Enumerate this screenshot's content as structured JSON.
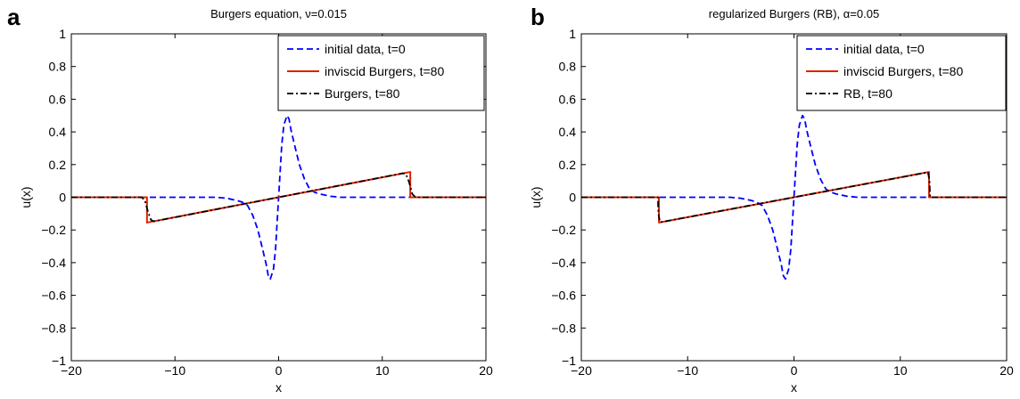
{
  "chart_data": [
    {
      "panel_label": "a",
      "type": "line",
      "title": "Burgers equation, ν=0.015",
      "xlabel": "x",
      "ylabel": "u(x)",
      "xlim": [
        -20,
        20
      ],
      "ylim": [
        -1,
        1
      ],
      "xticks": [
        -20,
        -10,
        0,
        10,
        20
      ],
      "yticks": [
        -1,
        -0.8,
        -0.6,
        -0.4,
        -0.2,
        0,
        0.2,
        0.4,
        0.6,
        0.8,
        1
      ],
      "xtick_labels": [
        "−20",
        "−10",
        "0",
        "10",
        "20"
      ],
      "ytick_labels": [
        "−1",
        "−0.8",
        "−0.6",
        "−0.4",
        "−0.2",
        "0",
        "0.2",
        "0.4",
        "0.6",
        "0.8",
        "1"
      ],
      "grid": false,
      "legend_position": "top-right",
      "series": [
        {
          "name": "initial data, t=0",
          "color": "#0000ff",
          "style": "dashed",
          "x": [
            -20,
            -6,
            -5,
            -4,
            -3.5,
            -3,
            -2.5,
            -2,
            -1.5,
            -1.2,
            -1,
            -0.8,
            -0.5,
            -0.3,
            0,
            0.3,
            0.5,
            0.8,
            1,
            1.2,
            1.5,
            2,
            2.5,
            3,
            3.5,
            4,
            5,
            6,
            20
          ],
          "y": [
            0,
            0,
            -0.006,
            -0.02,
            -0.03,
            -0.05,
            -0.11,
            -0.2,
            -0.33,
            -0.41,
            -0.48,
            -0.5,
            -0.44,
            -0.32,
            0,
            0.32,
            0.44,
            0.5,
            0.48,
            0.41,
            0.33,
            0.2,
            0.11,
            0.05,
            0.03,
            0.02,
            0.006,
            0,
            0
          ]
        },
        {
          "name": "inviscid Burgers, t=80",
          "color": "#dd2200",
          "style": "solid",
          "x": [
            -20,
            -12.7,
            -12.7,
            12.7,
            12.7,
            20
          ],
          "y": [
            0,
            0,
            -0.155,
            0.155,
            0,
            0
          ]
        },
        {
          "name": "Burgers, t=80",
          "color": "#000000",
          "style": "dashdot",
          "x": [
            -20,
            -13.2,
            -12.9,
            -12.6,
            -12.3,
            -12,
            12,
            12.3,
            12.6,
            12.9,
            13.2,
            20
          ],
          "y": [
            0,
            0,
            -0.02,
            -0.09,
            -0.14,
            -0.147,
            0.147,
            0.14,
            0.09,
            0.02,
            0,
            0
          ]
        }
      ]
    },
    {
      "panel_label": "b",
      "type": "line",
      "title": "regularized Burgers (RB), α=0.05",
      "xlabel": "x",
      "ylabel": "u(x)",
      "xlim": [
        -20,
        20
      ],
      "ylim": [
        -1,
        1
      ],
      "xticks": [
        -20,
        -10,
        0,
        10,
        20
      ],
      "yticks": [
        -1,
        -0.8,
        -0.6,
        -0.4,
        -0.2,
        0,
        0.2,
        0.4,
        0.6,
        0.8,
        1
      ],
      "xtick_labels": [
        "−20",
        "−10",
        "0",
        "10",
        "20"
      ],
      "ytick_labels": [
        "−1",
        "−0.8",
        "−0.6",
        "−0.4",
        "−0.2",
        "0",
        "0.2",
        "0.4",
        "0.6",
        "0.8",
        "1"
      ],
      "grid": false,
      "legend_position": "top-right",
      "series": [
        {
          "name": "initial data, t=0",
          "color": "#0000ff",
          "style": "dashed",
          "x": [
            -20,
            -6,
            -5,
            -4,
            -3.5,
            -3,
            -2.5,
            -2,
            -1.5,
            -1.2,
            -1,
            -0.8,
            -0.5,
            -0.3,
            0,
            0.3,
            0.5,
            0.8,
            1,
            1.2,
            1.5,
            2,
            2.5,
            3,
            3.5,
            4,
            5,
            6,
            20
          ],
          "y": [
            0,
            0,
            -0.006,
            -0.02,
            -0.03,
            -0.05,
            -0.11,
            -0.2,
            -0.33,
            -0.41,
            -0.48,
            -0.5,
            -0.44,
            -0.32,
            0,
            0.32,
            0.44,
            0.5,
            0.48,
            0.41,
            0.33,
            0.2,
            0.11,
            0.05,
            0.03,
            0.02,
            0.006,
            0,
            0
          ]
        },
        {
          "name": "inviscid Burgers, t=80",
          "color": "#dd2200",
          "style": "solid",
          "x": [
            -20,
            -12.7,
            -12.7,
            12.7,
            12.7,
            20
          ],
          "y": [
            0,
            0,
            -0.155,
            0.155,
            0,
            0
          ]
        },
        {
          "name": "RB, t=80",
          "color": "#000000",
          "style": "dashdot",
          "x": [
            -20,
            -12.8,
            -12.75,
            -12.6,
            12.6,
            12.75,
            12.8,
            20
          ],
          "y": [
            0,
            0,
            -0.1,
            -0.153,
            0.153,
            0.1,
            0,
            0
          ]
        }
      ]
    }
  ]
}
